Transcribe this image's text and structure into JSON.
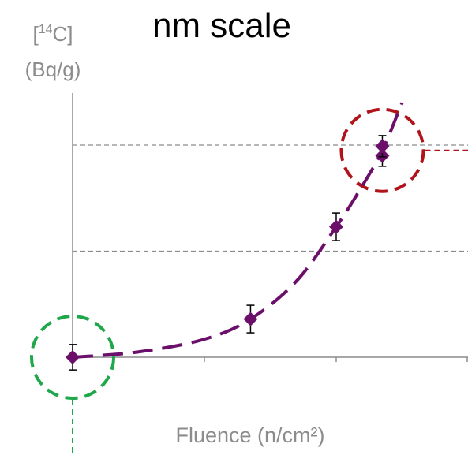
{
  "colors": {
    "title": "#e00000",
    "series": "#6b0f6b",
    "axis": "#8c8c8c",
    "gridline": "#8c8c8c",
    "highlight_high": "#b0141a",
    "highlight_low": "#1fa84b",
    "error_bar": "#000000"
  },
  "chart_data": {
    "type": "scatter",
    "title": "nm scale",
    "ylabel_line1_pre": "[",
    "ylabel_sup": "14",
    "ylabel_line1_post": "C]",
    "ylabel_line2": "(Bq/g)",
    "xlabel": "Fluence (n/cm²)",
    "xlim": [
      0,
      3
    ],
    "ylim": [
      0,
      2.5
    ],
    "grid": "horizontal-dashed",
    "gridlines_y": [
      1,
      2
    ],
    "x_ticks": [
      0,
      1,
      2,
      3
    ],
    "series": [
      {
        "points": [
          {
            "x": 0,
            "y": 0,
            "err": 0.12
          },
          {
            "x": 1.35,
            "y": 0.36,
            "err": 0.13
          },
          {
            "x": 2.0,
            "y": 1.23,
            "err": 0.13
          },
          {
            "x": 2.35,
            "y": 1.9,
            "err": 0.1
          },
          {
            "x": 2.35,
            "y": 1.99,
            "err": 0.1
          }
        ],
        "trend": [
          {
            "x": 0,
            "y": 0
          },
          {
            "x": 0.5,
            "y": 0.05
          },
          {
            "x": 1.0,
            "y": 0.17
          },
          {
            "x": 1.35,
            "y": 0.36
          },
          {
            "x": 1.7,
            "y": 0.72
          },
          {
            "x": 2.0,
            "y": 1.23
          },
          {
            "x": 2.2,
            "y": 1.62
          },
          {
            "x": 2.35,
            "y": 1.95
          },
          {
            "x": 2.5,
            "y": 2.4
          }
        ]
      }
    ],
    "highlights": [
      {
        "name": "high-fluence-circle",
        "x": 2.35,
        "y": 1.95,
        "color": "highlight_high"
      },
      {
        "name": "zero-fluence-circle",
        "x": 0,
        "y": 0,
        "color": "highlight_low"
      }
    ]
  }
}
